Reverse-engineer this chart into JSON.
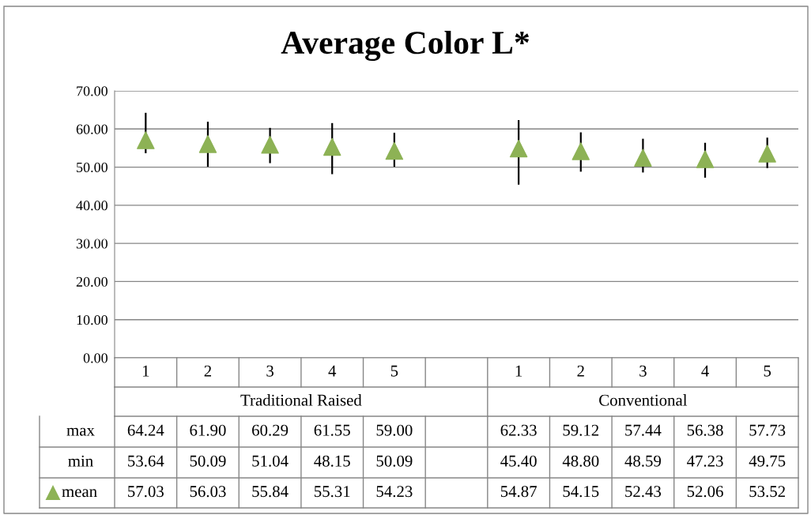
{
  "chart_data": {
    "type": "scatter",
    "title": "Average Color L*",
    "categories": [
      "1",
      "2",
      "3",
      "4",
      "5",
      null,
      "1",
      "2",
      "3",
      "4",
      "5"
    ],
    "annotations": [
      "Traditional Raised",
      "Conventional",
      "max",
      "64.24",
      "61.90",
      "60.29",
      "61.55",
      "59.00",
      "62.33",
      "59.12",
      "57.44",
      "56.38",
      "57.73",
      "min",
      "53.64",
      "50.09",
      "51.04",
      "48.15",
      "50.09",
      "45.40",
      "48.80",
      "48.59",
      "47.23",
      "49.75"
    ],
    "series": [
      {
        "name": "mean",
        "marker": "triangle",
        "color": "#8db255",
        "values": [
          57.03,
          56.03,
          55.84,
          55.31,
          54.23,
          null,
          54.87,
          54.15,
          52.43,
          52.06,
          53.52
        ],
        "errors": [
          [
            53.64,
            64.24
          ],
          [
            50.09,
            61.9
          ],
          [
            51.04,
            60.29
          ],
          [
            48.15,
            61.55
          ],
          [
            50.09,
            59.0
          ],
          null,
          [
            45.4,
            62.33
          ],
          [
            48.8,
            59.12
          ],
          [
            48.59,
            57.44
          ],
          [
            47.23,
            56.38
          ],
          [
            49.75,
            57.73
          ]
        ]
      }
    ],
    "ylim": [
      0,
      70
    ],
    "yticks": [
      {
        "value": 0,
        "label": "0.00"
      },
      {
        "value": 10,
        "label": "10.00"
      },
      {
        "value": 20,
        "label": "20.00"
      },
      {
        "value": 30,
        "label": "30.00"
      },
      {
        "value": 40,
        "label": "40.00"
      },
      {
        "value": 50,
        "label": "50.00"
      },
      {
        "value": 60,
        "label": "60.00"
      },
      {
        "value": 70,
        "label": "70.00"
      }
    ],
    "grid": "y",
    "data_labels": true
  }
}
